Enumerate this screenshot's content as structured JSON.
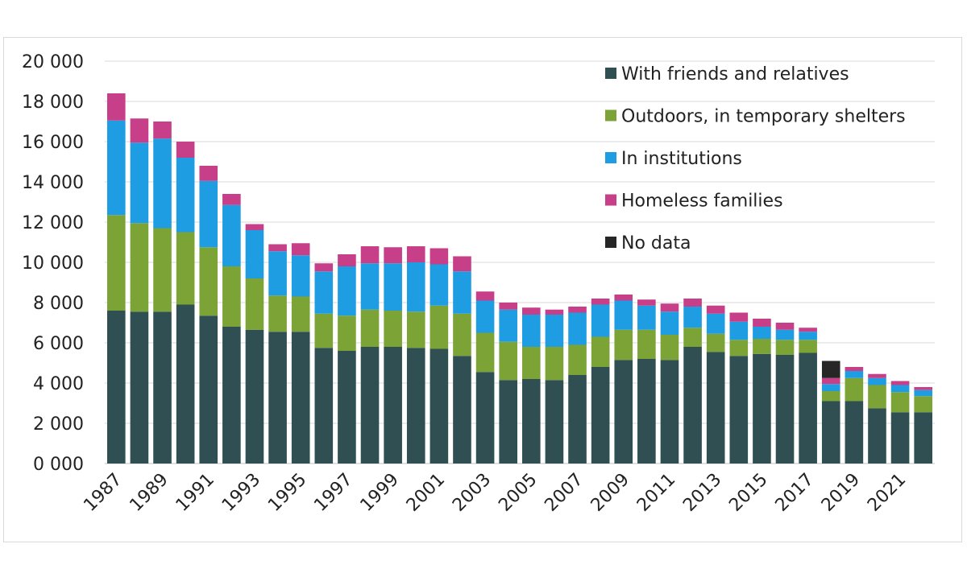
{
  "chart_data": {
    "type": "bar",
    "stacked": true,
    "title": "",
    "xlabel": "",
    "ylabel": "",
    "ylim": [
      0,
      20000
    ],
    "yticks": [
      "0 000",
      "2 000",
      "4 000",
      "6 000",
      "8 000",
      "10 000",
      "12 000",
      "14 000",
      "16 000",
      "18 000",
      "20 000"
    ],
    "grid": true,
    "legend_position": "top-right",
    "categories": [
      "1987",
      "1988",
      "1989",
      "1990",
      "1991",
      "1992",
      "1993",
      "1994",
      "1995",
      "1996",
      "1997",
      "1998",
      "1999",
      "2000",
      "2001",
      "2002",
      "2003",
      "2004",
      "2005",
      "2006",
      "2007",
      "2008",
      "2009",
      "2010",
      "2011",
      "2012",
      "2013",
      "2014",
      "2015",
      "2016",
      "2017",
      "2018",
      "2019",
      "2020",
      "2021",
      "2022"
    ],
    "xtick_labels": [
      "1987",
      "",
      "1989",
      "",
      "1991",
      "",
      "1993",
      "",
      "1995",
      "",
      "1997",
      "",
      "1999",
      "",
      "2001",
      "",
      "2003",
      "",
      "2005",
      "",
      "2007",
      "",
      "2009",
      "",
      "2011",
      "",
      "2013",
      "",
      "2015",
      "",
      "2017",
      "",
      "2019",
      "",
      "2021",
      ""
    ],
    "series": [
      {
        "name": "With friends and relatives",
        "color": "#2f4f53",
        "values": [
          7600,
          7550,
          7550,
          7900,
          7350,
          6800,
          6650,
          6550,
          6550,
          5750,
          5600,
          5800,
          5800,
          5750,
          5700,
          5350,
          4550,
          4150,
          4200,
          4150,
          4400,
          4800,
          5150,
          5200,
          5150,
          5800,
          5550,
          5350,
          5450,
          5400,
          5500,
          3100,
          3100,
          2750,
          2550,
          2550
        ]
      },
      {
        "name": "Outdoors, in temporary shelters",
        "color": "#7ca335",
        "values": [
          4750,
          4400,
          4150,
          3600,
          3400,
          3000,
          2550,
          1800,
          1750,
          1700,
          1750,
          1850,
          1800,
          1800,
          2150,
          2100,
          1950,
          1900,
          1600,
          1650,
          1500,
          1500,
          1500,
          1450,
          1250,
          950,
          900,
          800,
          750,
          750,
          650,
          500,
          1150,
          1150,
          1000,
          800
        ]
      },
      {
        "name": "In institutions",
        "color": "#1e9de2",
        "values": [
          4700,
          4000,
          4450,
          3700,
          3300,
          3050,
          2400,
          2200,
          2050,
          2100,
          2450,
          2300,
          2350,
          2450,
          2050,
          2100,
          1600,
          1600,
          1600,
          1600,
          1600,
          1600,
          1450,
          1200,
          1150,
          1050,
          1000,
          900,
          600,
          500,
          400,
          350,
          350,
          350,
          350,
          300
        ]
      },
      {
        "name": "Homeless families",
        "color": "#c63f88",
        "values": [
          1350,
          1200,
          850,
          800,
          750,
          550,
          300,
          350,
          600,
          400,
          600,
          850,
          800,
          800,
          800,
          750,
          450,
          350,
          350,
          250,
          300,
          300,
          300,
          300,
          400,
          400,
          400,
          450,
          400,
          350,
          200,
          300,
          200,
          200,
          200,
          150
        ]
      },
      {
        "name": "No data",
        "color": "#262626",
        "values": [
          0,
          0,
          0,
          0,
          0,
          0,
          0,
          0,
          0,
          0,
          0,
          0,
          0,
          0,
          0,
          0,
          0,
          0,
          0,
          0,
          0,
          0,
          0,
          0,
          0,
          0,
          0,
          0,
          0,
          0,
          0,
          850,
          0,
          0,
          0,
          0
        ]
      }
    ]
  }
}
